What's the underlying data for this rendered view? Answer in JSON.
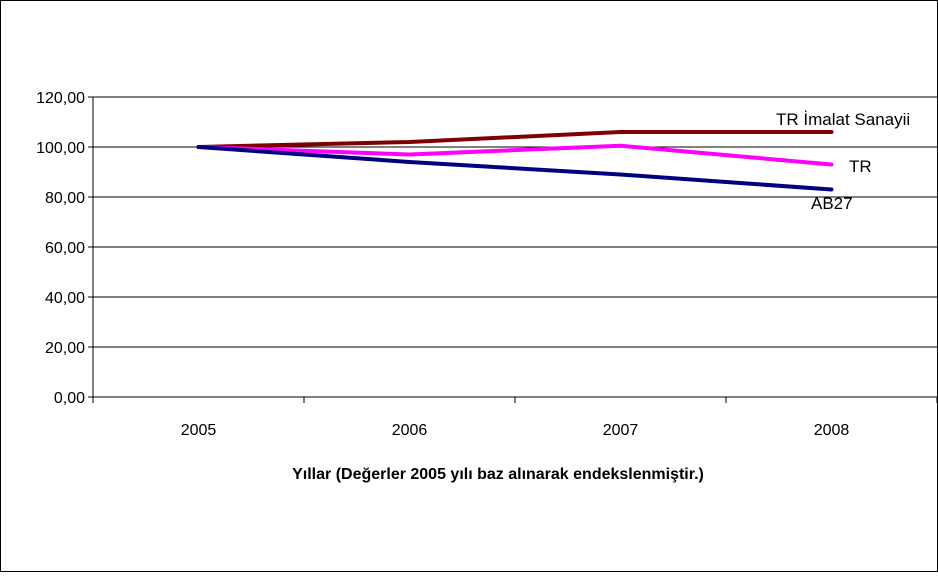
{
  "chart_data": {
    "type": "line",
    "xlabel": "Yıllar (Değerler 2005 yılı baz alınarak endekslenmiştir.)",
    "ylabel": "",
    "categories": [
      "2005",
      "2006",
      "2007",
      "2008"
    ],
    "ylim": [
      0,
      120
    ],
    "ytick_labels": [
      "0,00",
      "20,00",
      "40,00",
      "60,00",
      "80,00",
      "100,00",
      "120,00"
    ],
    "grid": true,
    "legend": "inline labels at line ends",
    "series": [
      {
        "name": "TR İmalat Sanayii",
        "color": "#7f0000",
        "values": [
          100,
          102,
          106,
          106
        ]
      },
      {
        "name": "TR",
        "color": "#ff00ff",
        "values": [
          100,
          97,
          100.5,
          93
        ]
      },
      {
        "name": "AB27",
        "color": "#000080",
        "values": [
          100,
          94,
          89,
          83
        ]
      }
    ]
  }
}
